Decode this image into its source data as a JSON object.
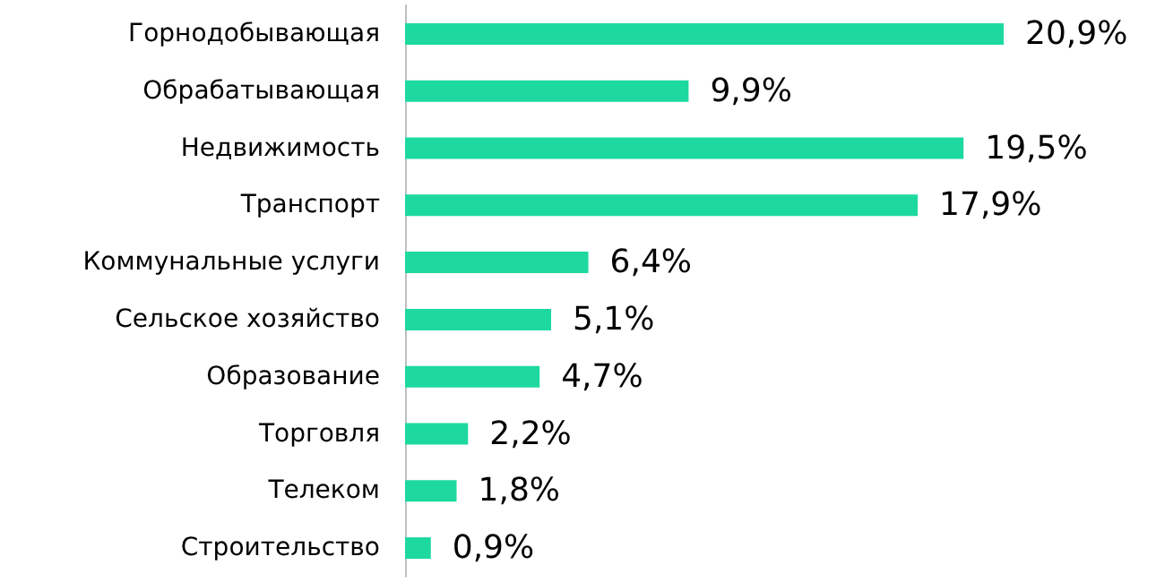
{
  "chart_data": {
    "type": "bar",
    "orientation": "horizontal",
    "categories": [
      "Горнодобывающая",
      "Обрабатывающая",
      "Недвижимость",
      "Транспорт",
      "Коммунальные услуги",
      "Сельское хозяйство",
      "Образование",
      "Торговля",
      "Телеком",
      "Строительство"
    ],
    "values": [
      20.9,
      9.9,
      19.5,
      17.9,
      6.4,
      5.1,
      4.7,
      2.2,
      1.8,
      0.9
    ],
    "value_labels": [
      "20,9%",
      "9,9%",
      "19,5%",
      "17,9%",
      "6,4%",
      "5,1%",
      "4,7%",
      "2,2%",
      "1,8%",
      "0,9%"
    ],
    "color": "#1dd9a0"
  }
}
